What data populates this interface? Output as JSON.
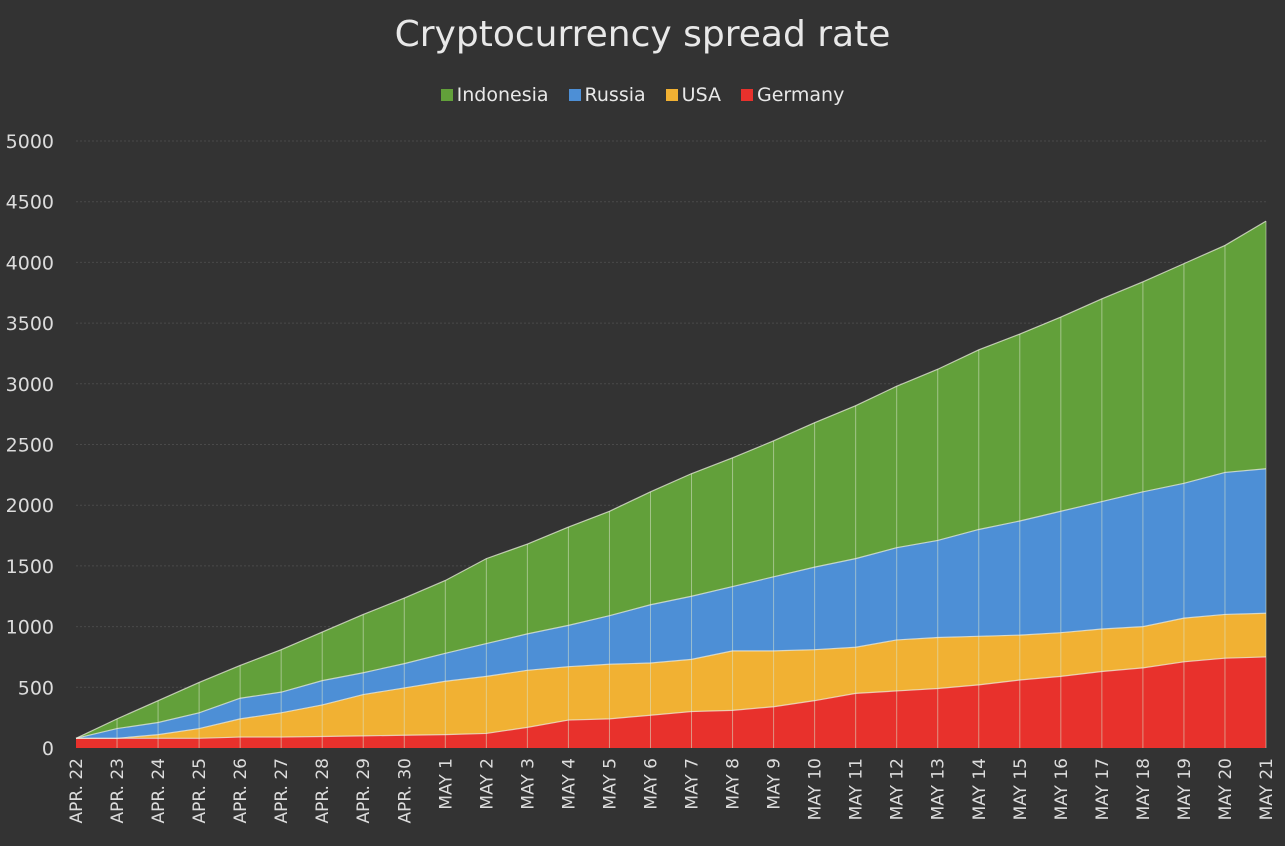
{
  "chart_data": {
    "type": "area",
    "stacked": true,
    "title": "Cryptocurrency spread rate",
    "legend_position": "top",
    "grid": true,
    "ylim": [
      0,
      5000
    ],
    "yticks": [
      0,
      500,
      1000,
      1500,
      2000,
      2500,
      3000,
      3500,
      4000,
      4500,
      5000
    ],
    "categories": [
      "APR. 22",
      "APR. 23",
      "APR. 24",
      "APR. 25",
      "APR. 26",
      "APR. 27",
      "APR. 28",
      "APR. 29",
      "APR. 30",
      "MAY 1",
      "MAY 2",
      "MAY 3",
      "MAY 4",
      "MAY 5",
      "MAY 6",
      "MAY 7",
      "MAY 8",
      "MAY 9",
      "MAY 10",
      "MAY 11",
      "MAY 12",
      "MAY 13",
      "MAY 14",
      "MAY 15",
      "MAY 16",
      "MAY 17",
      "MAY 18",
      "MAY 19",
      "MAY 20",
      "MAY 21"
    ],
    "series": [
      {
        "name": "Germany",
        "color": "#e8312c",
        "values": [
          80,
          80,
          80,
          80,
          90,
          90,
          95,
          100,
          105,
          110,
          120,
          170,
          230,
          240,
          270,
          300,
          310,
          340,
          390,
          450,
          470,
          490,
          520,
          560,
          590,
          630,
          660,
          710,
          740,
          750
        ]
      },
      {
        "name": "USA",
        "color": "#f1b133",
        "values": [
          0,
          0,
          30,
          80,
          150,
          200,
          260,
          340,
          390,
          440,
          470,
          470,
          440,
          450,
          430,
          430,
          490,
          460,
          420,
          380,
          420,
          420,
          400,
          370,
          360,
          350,
          340,
          360,
          360,
          360
        ]
      },
      {
        "name": "Russia",
        "color": "#4d8fd6",
        "values": [
          0,
          80,
          100,
          130,
          170,
          170,
          200,
          180,
          200,
          230,
          270,
          300,
          340,
          400,
          480,
          520,
          530,
          610,
          680,
          730,
          760,
          800,
          880,
          940,
          1000,
          1050,
          1110,
          1110,
          1170,
          1190
        ]
      },
      {
        "name": "Indonesia",
        "color": "#62a03a",
        "values": [
          0,
          80,
          180,
          250,
          270,
          350,
          400,
          480,
          540,
          600,
          700,
          740,
          810,
          860,
          930,
          1010,
          1060,
          1120,
          1190,
          1260,
          1330,
          1410,
          1480,
          1540,
          1600,
          1670,
          1730,
          1810,
          1870,
          2040
        ]
      }
    ],
    "legend_order": [
      "Indonesia",
      "Russia",
      "USA",
      "Germany"
    ]
  },
  "colors": {
    "background": "#333333",
    "grid": "#4a4a4a",
    "divider": "#d9e3cc"
  }
}
